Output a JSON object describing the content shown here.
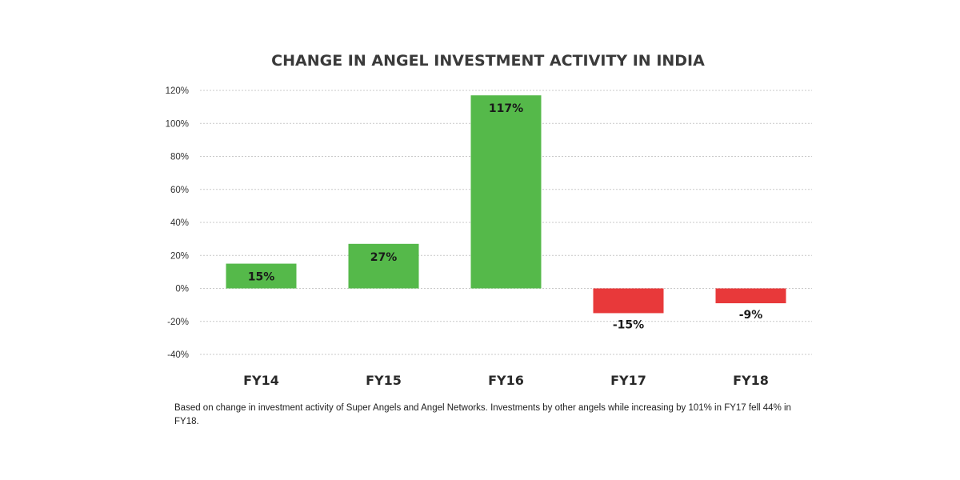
{
  "chart_data": {
    "type": "bar",
    "title": "CHANGE IN ANGEL INVESTMENT ACTIVITY IN INDIA",
    "categories": [
      "FY14",
      "FY15",
      "FY16",
      "FY17",
      "FY18"
    ],
    "values": [
      15,
      27,
      117,
      -15,
      -9
    ],
    "data_labels": [
      "15%",
      "27%",
      "117%",
      "-15%",
      "-9%"
    ],
    "ylim": [
      -40,
      120
    ],
    "yticks": [
      120,
      100,
      80,
      60,
      40,
      20,
      0,
      -20,
      -40
    ],
    "ytick_labels": [
      "120%",
      "100%",
      "80%",
      "60%",
      "40%",
      "20%",
      "0%",
      "-20%",
      "-40%"
    ],
    "grid": true,
    "legend": "none",
    "colors": {
      "positive": "#55b94a",
      "negative": "#e8393a",
      "grid": "#c9c9c9"
    }
  },
  "footnote": "Based on change in investment activity  of Super Angels and Angel Networks. Investments by other angels while increasing by 101% in FY17 fell 44% in FY18."
}
